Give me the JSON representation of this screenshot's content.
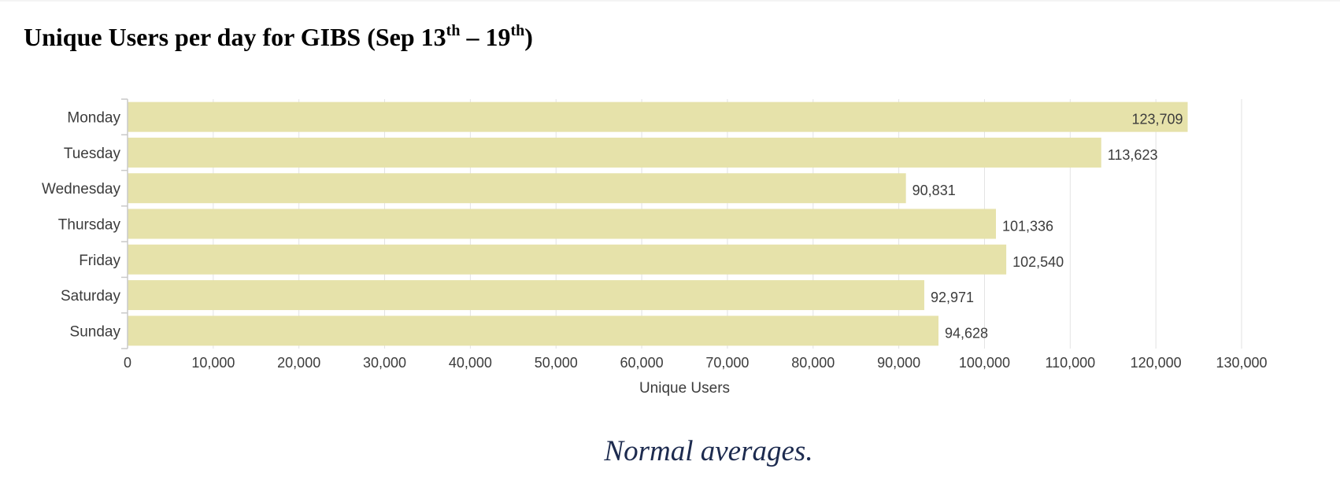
{
  "title": {
    "prefix": "Unique Users per day for GIBS (Sep 13",
    "sup1": "th",
    "middle": " – 19",
    "sup2": "th",
    "suffix": ")"
  },
  "caption": "Normal averages.",
  "colors": {
    "bar": "#e6e2aa",
    "grid": "#e2e2e2",
    "axis": "#c9c9c9",
    "text": "#3c3c3c"
  },
  "chart_data": {
    "type": "bar",
    "orientation": "horizontal",
    "categories": [
      "Monday",
      "Tuesday",
      "Wednesday",
      "Thursday",
      "Friday",
      "Saturday",
      "Sunday"
    ],
    "values": [
      123709,
      113623,
      90831,
      101336,
      102540,
      92971,
      94628
    ],
    "value_labels": [
      "123,709",
      "113,623",
      "90,831",
      "101,336",
      "102,540",
      "92,971",
      "94,628"
    ],
    "xlabel": "Unique Users",
    "ylabel": "",
    "xlim": [
      0,
      130000
    ],
    "x_ticks": [
      0,
      10000,
      20000,
      30000,
      40000,
      50000,
      60000,
      70000,
      80000,
      90000,
      100000,
      110000,
      120000,
      130000
    ],
    "x_tick_labels": [
      "0",
      "10,000",
      "20,000",
      "30,000",
      "40,000",
      "50,000",
      "60,000",
      "70,000",
      "80,000",
      "90,000",
      "100,000",
      "110,000",
      "120,000",
      "130,000"
    ],
    "grid": true,
    "legend": "none"
  }
}
